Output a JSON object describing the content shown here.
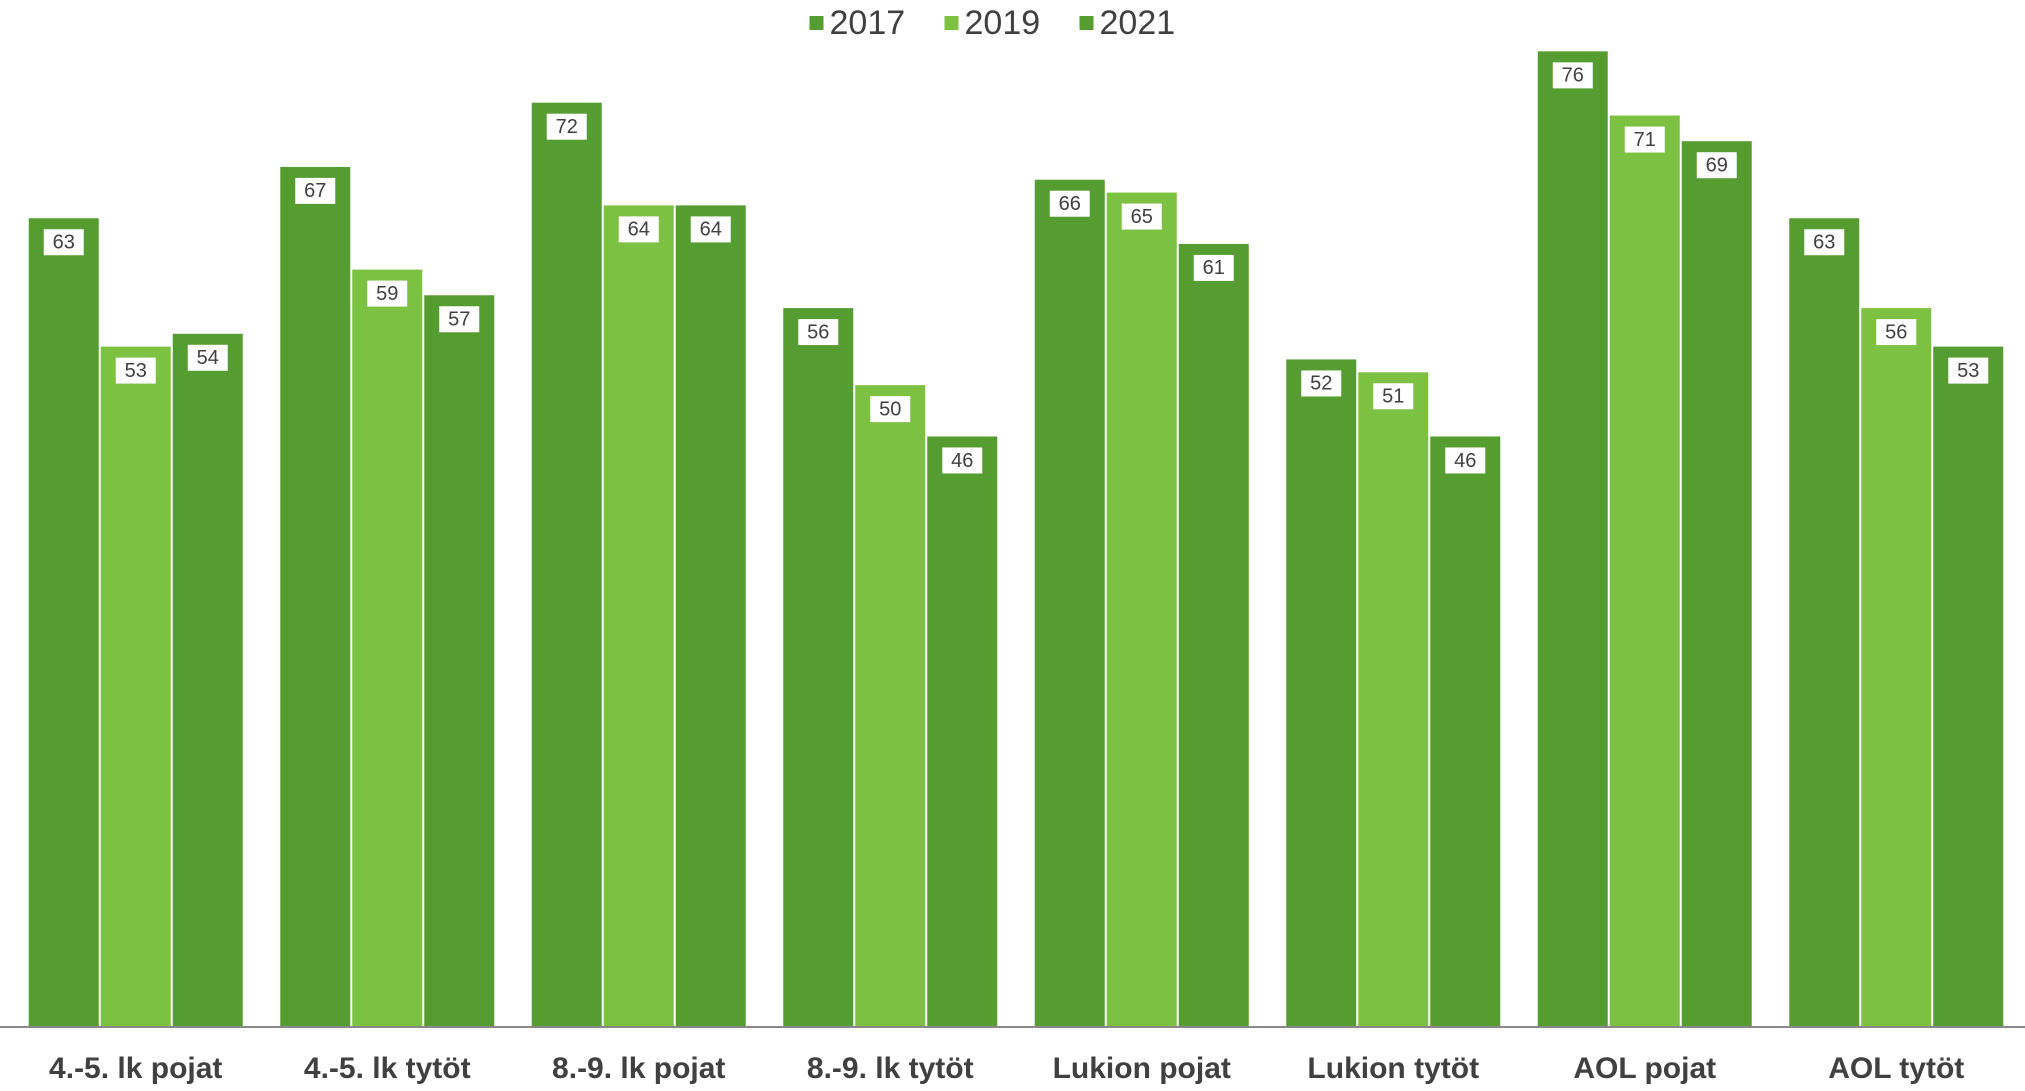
{
  "chart_data": {
    "type": "bar",
    "categories": [
      "4.-5. lk pojat",
      "4.-5. lk tytöt",
      "8.-9. lk pojat",
      "8.-9. lk tytöt",
      "Lukion pojat",
      "Lukion tytöt",
      "AOL pojat",
      "AOL tytöt"
    ],
    "series": [
      {
        "name": "2017",
        "color": "#559d30",
        "values": [
          63,
          67,
          72,
          56,
          66,
          52,
          76,
          63
        ]
      },
      {
        "name": "2019",
        "color": "#7dc142",
        "values": [
          53,
          59,
          64,
          50,
          65,
          51,
          71,
          56
        ]
      },
      {
        "name": "2021",
        "color": "#559d30",
        "values": [
          54,
          57,
          64,
          46,
          61,
          46,
          69,
          53
        ]
      }
    ],
    "ylim": [
      0,
      80
    ],
    "legend": "top"
  }
}
